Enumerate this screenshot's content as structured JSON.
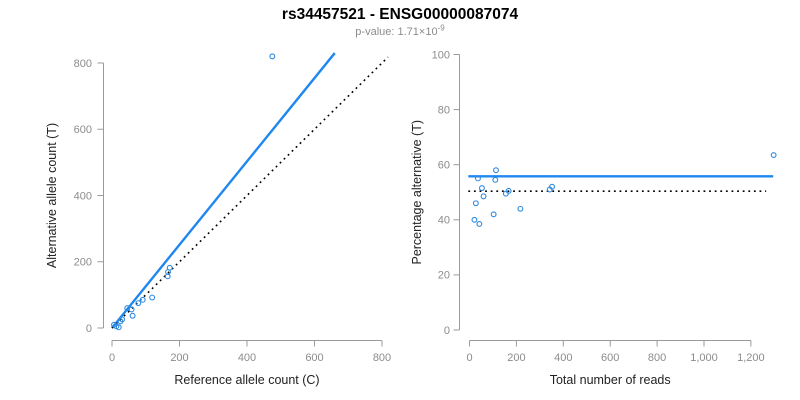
{
  "header": {
    "title": "rs34457521 - ENSG00000087074",
    "subtitle_prefix": "p-value: 1.71×10",
    "subtitle_exponent": "-9"
  },
  "colors": {
    "accent_blue": "#1E87F0",
    "point_blue": "#2E8AE0",
    "dotted_black": "#000000",
    "axis_line_gray": "#9b9b9b",
    "tick_label_gray": "#8c8c8c",
    "axis_title_dark": "#222222",
    "subtitle_gray": "#8c8c8c"
  },
  "chart_data": [
    {
      "type": "scatter",
      "name": "allele-counts-scatter",
      "title": "",
      "xlabel": "Reference allele count (C)",
      "ylabel": "Alternative allele count (T)",
      "xlim": [
        0,
        800
      ],
      "ylim": [
        0,
        800
      ],
      "xticks": [
        0,
        200,
        400,
        600,
        800
      ],
      "xtick_labels": [
        "0",
        "200",
        "400",
        "600",
        "800"
      ],
      "yticks": [
        0,
        200,
        400,
        600,
        800
      ],
      "ytick_labels": [
        "0",
        "200",
        "400",
        "600",
        "800"
      ],
      "grid": false,
      "legend": null,
      "points": [
        [
          6,
          10
        ],
        [
          13,
          5
        ],
        [
          20,
          2
        ],
        [
          25,
          20
        ],
        [
          30,
          26
        ],
        [
          45,
          60
        ],
        [
          58,
          56
        ],
        [
          61,
          37
        ],
        [
          78,
          75
        ],
        [
          91,
          85
        ],
        [
          119,
          92
        ],
        [
          165,
          156
        ],
        [
          166,
          169
        ],
        [
          171,
          182
        ],
        [
          475,
          820
        ]
      ],
      "lines": [
        {
          "name": "fit-line",
          "style": "solid",
          "color": "#1E87F0",
          "x1": 0,
          "y1": 0,
          "x2": 660,
          "y2": 830
        },
        {
          "name": "identity-line",
          "style": "dotted",
          "color": "#000000",
          "x1": 0,
          "y1": 0,
          "x2": 818,
          "y2": 818
        }
      ]
    },
    {
      "type": "scatter",
      "name": "percentage-vs-reads-scatter",
      "title": "",
      "xlabel": "Total number of reads",
      "ylabel": "Percentage alternative (T)",
      "xlim": [
        0,
        1300
      ],
      "ylim": [
        0,
        100
      ],
      "xticks": [
        0,
        200,
        400,
        600,
        800,
        1000,
        1200
      ],
      "xtick_labels": [
        "0",
        "200",
        "400",
        "600",
        "800",
        "1,000",
        "1,200"
      ],
      "yticks": [
        0,
        20,
        40,
        60,
        80,
        100
      ],
      "ytick_labels": [
        "0",
        "20",
        "40",
        "60",
        "80",
        "100"
      ],
      "grid": false,
      "legend": null,
      "points": [
        [
          21,
          40
        ],
        [
          27,
          46
        ],
        [
          36,
          55
        ],
        [
          42,
          38.5
        ],
        [
          53,
          51.5
        ],
        [
          60,
          48.5
        ],
        [
          103,
          42
        ],
        [
          110,
          54.5
        ],
        [
          113,
          58
        ],
        [
          155,
          49.5
        ],
        [
          167,
          50.5
        ],
        [
          217,
          44
        ],
        [
          342,
          51
        ],
        [
          352,
          52
        ],
        [
          1297,
          63.5
        ]
      ],
      "lines": [
        {
          "name": "mean-percentage-line",
          "style": "solid",
          "color": "#1E87F0",
          "x1": -5,
          "y1": 55.8,
          "x2": 1295,
          "y2": 55.8
        },
        {
          "name": "expected-50pct-line",
          "style": "dotted",
          "color": "#000000",
          "x1": -5,
          "y1": 50.4,
          "x2": 1265,
          "y2": 50.4
        }
      ]
    }
  ]
}
